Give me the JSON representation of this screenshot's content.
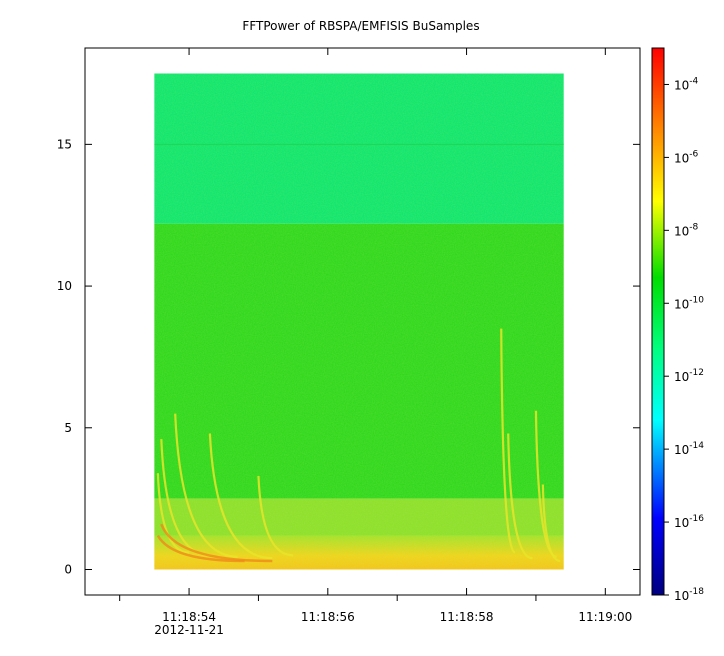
{
  "chart_data": {
    "type": "heatmap",
    "title": "FFTPower of RBSPA/EMFISIS  BuSamples",
    "xlabel": "",
    "ylabel": "",
    "x_ticks": [
      {
        "t": 54,
        "label": "11:18:54"
      },
      {
        "t": 56,
        "label": "11:18:56"
      },
      {
        "t": 58,
        "label": "11:18:58"
      },
      {
        "t": 60,
        "label": "11:19:00"
      }
    ],
    "x_date_label": "2012-11-21",
    "x_minor_ticks": [
      53,
      55,
      57,
      59
    ],
    "xlim": [
      52.5,
      60.5
    ],
    "data_x_range": [
      53.5,
      59.4
    ],
    "y_ticks": [
      0,
      5,
      10,
      15
    ],
    "ylim": [
      -0.9,
      18.4
    ],
    "data_y_range": [
      0,
      17.5
    ],
    "colorbar": {
      "scale": "log",
      "range": [
        1e-18,
        0.001
      ],
      "ticks": [
        {
          "base": "10",
          "exp": "-4",
          "value": 0.0001
        },
        {
          "base": "10",
          "exp": "-6",
          "value": 1e-06
        },
        {
          "base": "10",
          "exp": "-8",
          "value": 1e-08
        },
        {
          "base": "10",
          "exp": "-10",
          "value": 1e-10
        },
        {
          "base": "10",
          "exp": "-12",
          "value": 1e-12
        },
        {
          "base": "10",
          "exp": "-14",
          "value": 1e-14
        },
        {
          "base": "10",
          "exp": "-16",
          "value": 1e-16
        },
        {
          "base": "10",
          "exp": "-18",
          "value": 1e-18
        }
      ],
      "colors": [
        "#00007f",
        "#0000ff",
        "#00ffff",
        "#00ff7f",
        "#00dd00",
        "#ffff00",
        "#ff7f00",
        "#ff0000"
      ]
    },
    "bands": [
      {
        "y_from": 12.2,
        "y_to": 17.5,
        "color": "#0ee66e",
        "level": 1e-12
      },
      {
        "y_from": 2.5,
        "y_to": 12.2,
        "color": "#2fd81c",
        "level": 1e-10
      },
      {
        "y_from": 1.2,
        "y_to": 2.5,
        "color": "#8ee02a",
        "level": 1e-09
      },
      {
        "y_from": 0.0,
        "y_to": 1.2,
        "color": "#f2d41a",
        "level": 1e-08
      }
    ]
  }
}
